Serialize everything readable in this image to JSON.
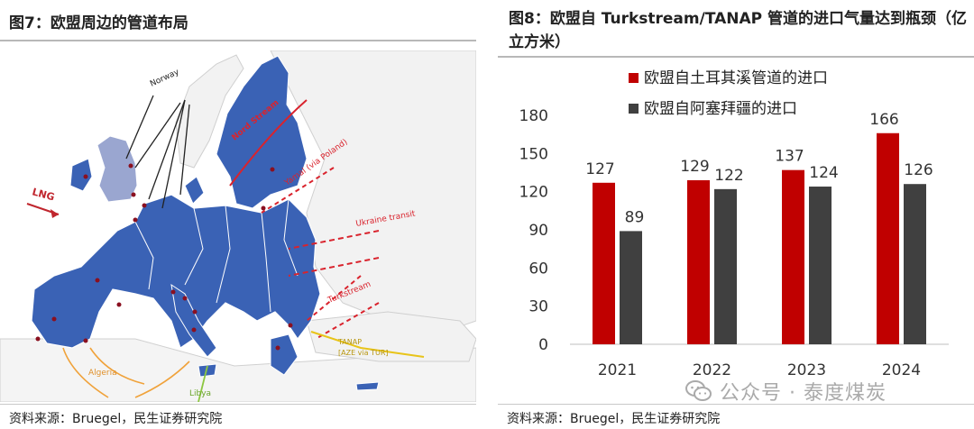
{
  "left_panel": {
    "title": "图7：欧盟周边的管道布局",
    "source": "资料来源：Bruegel，民生证券研究院",
    "map": {
      "labels": {
        "norway": "Norway",
        "nord_stream": "Nord Stream",
        "yamal": "Yamal (via Poland)",
        "ukraine": "Ukraine transit",
        "turkstream": "Turkstream",
        "tanap_line1": "TANAP",
        "tanap_line2": "[AZE via TUR]",
        "lng": "LNG",
        "algeria": "Algeria",
        "libya": "Libya"
      },
      "colors": {
        "eu": "#3a62b5",
        "non_eu": "#f1f1f1",
        "uk": "#9aa6d0",
        "pipeline_red": "#d9232d",
        "pipeline_black": "#222222",
        "algeria": "#f0a23a",
        "libya": "#8cc640",
        "tanap": "#e8c419"
      }
    }
  },
  "right_panel": {
    "title": "图8：欧盟自 Turkstream/TANAP 管道的进口气量达到瓶颈（亿立方米）",
    "source": "资料来源：Bruegel，民生证券研究院"
  },
  "watermark": "公众号 · 泰度煤炭",
  "chart_data": {
    "type": "bar",
    "title": "图8：欧盟自 Turkstream/TANAP 管道的进口气量达到瓶颈（亿立方米）",
    "categories": [
      "2021",
      "2022",
      "2023",
      "2024"
    ],
    "series": [
      {
        "name": "欧盟自土耳其溪管道的进口",
        "values": [
          127,
          129,
          137,
          166
        ],
        "color": "#c00000"
      },
      {
        "name": "欧盟自阿塞拜疆的进口",
        "values": [
          89,
          122,
          124,
          126
        ],
        "color": "#404040"
      }
    ],
    "ylim": [
      0,
      180
    ],
    "yticks": [
      0,
      30,
      60,
      90,
      120,
      150,
      180
    ],
    "grid": false,
    "legend": "top-left",
    "data_labels": true
  }
}
